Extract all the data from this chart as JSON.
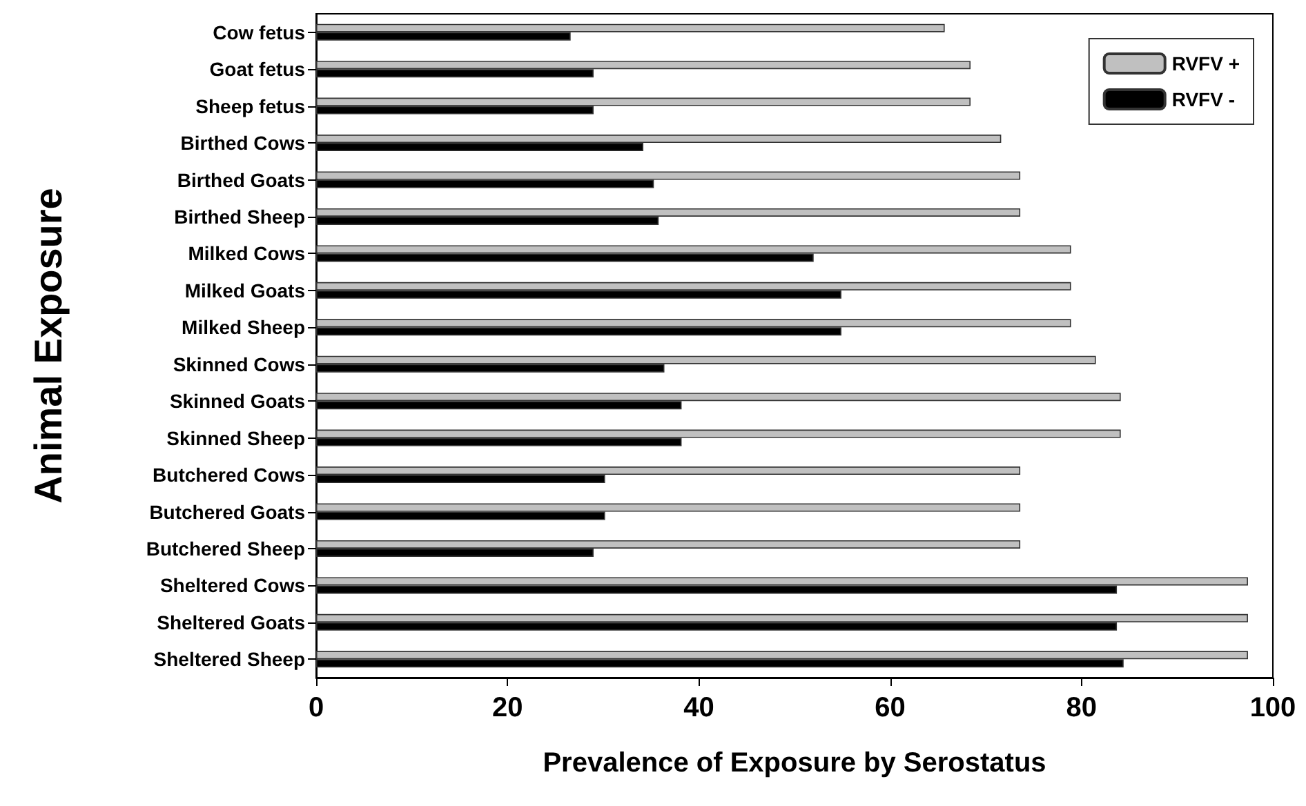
{
  "chart_data": {
    "type": "bar",
    "orientation": "horizontal",
    "xlabel": "Prevalence of Exposure by Serostatus",
    "ylabel": "Animal Exposure",
    "categories": [
      "Cow fetus",
      "Goat fetus",
      "Sheep fetus",
      "Birthed Cows",
      "Birthed Goats",
      "Birthed Sheep",
      "Milked Cows",
      "Milked Goats",
      "Milked Sheep",
      "Skinned Cows",
      "Skinned Goats",
      "Skinned Sheep",
      "Butchered Cows",
      "Butchered Goats",
      "Butchered Sheep",
      "Sheltered Cows",
      "Sheltered Goats",
      "Sheltered Sheep"
    ],
    "series": [
      {
        "name": "RVFV +",
        "color": "#c0c0c0",
        "values": [
          65.7,
          68.4,
          68.4,
          71.6,
          73.6,
          73.6,
          78.9,
          78.9,
          78.9,
          81.5,
          84.1,
          84.1,
          73.6,
          73.6,
          73.6,
          97.4,
          97.4,
          97.4
        ]
      },
      {
        "name": "RVFV -",
        "color": "#000000",
        "values": [
          26.6,
          29.0,
          29.0,
          34.2,
          35.3,
          35.8,
          52.0,
          54.9,
          54.9,
          36.4,
          38.2,
          38.2,
          30.2,
          30.2,
          29.0,
          83.7,
          83.7,
          84.4
        ]
      }
    ],
    "xlim": [
      0,
      100
    ],
    "xticks": [
      0,
      20,
      40,
      60,
      80,
      100
    ],
    "legend": "top right"
  }
}
